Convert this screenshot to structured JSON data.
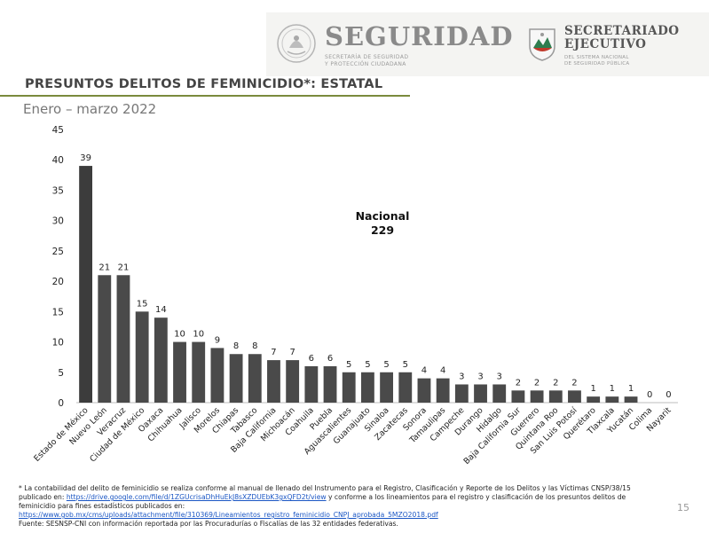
{
  "header": {
    "seguridad_word": "SEGURIDAD",
    "seguridad_sub1": "SECRETARÍA DE SEGURIDAD",
    "seguridad_sub2": "Y PROTECCIÓN CIUDADANA",
    "secretariado_line1": "SECRETARIADO",
    "secretariado_line2": "EJECUTIVO",
    "secretariado_sub1": "DEL SISTEMA NACIONAL",
    "secretariado_sub2": "DE SEGURIDAD PÚBLICA"
  },
  "slide": {
    "title": "PRESUNTOS DELITOS DE FEMINICIDIO*: ESTATAL",
    "period": "Enero – marzo 2022",
    "page_number": "15"
  },
  "national": {
    "label": "Nacional",
    "value": "229"
  },
  "footnote": {
    "text1": "* La contabilidad del delito de feminicidio se realiza conforme al manual de llenado del Instrumento para el Registro, Clasificación y Reporte de los Delitos y las Víctimas CNSP/38/15 publicado en: ",
    "link1": "https://drive.google.com/file/d/1ZGUcrisaDhHuEkJ8sXZDUEbK3gxQFD2t/view",
    "text2": " y conforme a los lineamientos para el registro y clasificación de los presuntos delitos de feminicidio para fines estadísticos publicados en:",
    "link2": "https://www.gob.mx/cms/uploads/attachment/file/310369/Lineamientos_registro_feminicidio_CNPJ_aprobada_5MZO2018.pdf",
    "source": "Fuente: SESNSP-CNI con información reportada por las Procuradurías o Fiscalías de las 32 entidades federativas."
  },
  "colors": {
    "bar": "#4a4a4a",
    "bar_highlight": "#3c3c3c",
    "rule": "#7a8a3c",
    "link": "#1a56c4"
  },
  "chart_data": {
    "type": "bar",
    "title": "PRESUNTOS DELITOS DE FEMINICIDIO*: ESTATAL",
    "subtitle": "Enero – marzo 2022",
    "xlabel": "",
    "ylabel": "",
    "ylim": [
      0,
      45
    ],
    "yticks": [
      0,
      5,
      10,
      15,
      20,
      25,
      30,
      35,
      40,
      45
    ],
    "grid": false,
    "categories": [
      "Estado de México",
      "Nuevo León",
      "Veracruz",
      "Ciudad de México",
      "Oaxaca",
      "Chihuahua",
      "Jalisco",
      "Morelos",
      "Chiapas",
      "Tabasco",
      "Baja California",
      "Michoacán",
      "Coahuila",
      "Puebla",
      "Aguascalientes",
      "Guanajuato",
      "Sinaloa",
      "Zacatecas",
      "Sonora",
      "Tamaulipas",
      "Campeche",
      "Durango",
      "Hidalgo",
      "Baja California Sur",
      "Guerrero",
      "Quintana Roo",
      "San Luis Potosí",
      "Querétaro",
      "Tlaxcala",
      "Yucatán",
      "Colima",
      "Nayarit"
    ],
    "values": [
      39,
      21,
      21,
      15,
      14,
      10,
      10,
      9,
      8,
      8,
      7,
      7,
      6,
      6,
      5,
      5,
      5,
      5,
      4,
      4,
      3,
      3,
      3,
      2,
      2,
      2,
      2,
      1,
      1,
      1,
      0,
      0
    ],
    "annotation": "Nacional 229"
  }
}
